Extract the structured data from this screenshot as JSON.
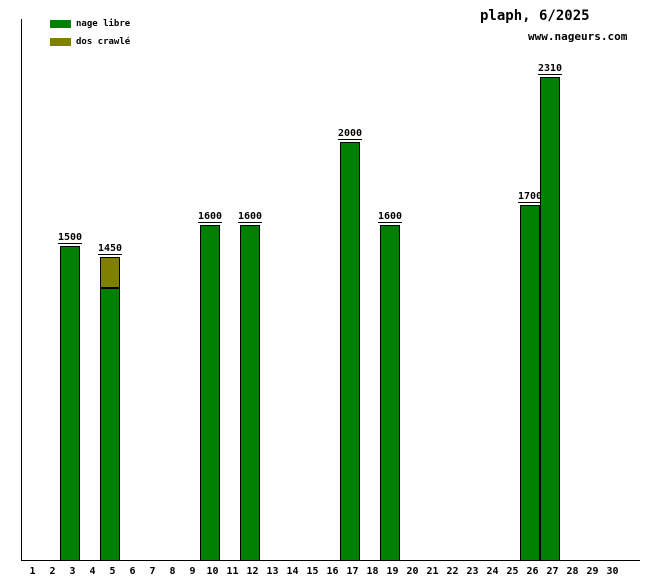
{
  "header": {
    "title": "plaph, 6/2025",
    "subtitle": "www.nageurs.com"
  },
  "legend": {
    "items": [
      {
        "name": "nage-libre",
        "label": "nage libre",
        "color": "#008000"
      },
      {
        "name": "dos-crawle",
        "label": "dos crawlé",
        "color": "#808000"
      }
    ]
  },
  "chart_data": {
    "type": "bar",
    "stacked": true,
    "title": "plaph, 6/2025",
    "subtitle": "www.nageurs.com",
    "unit": "m",
    "x_ticks": [
      "1",
      "2",
      "3",
      "4",
      "5",
      "6",
      "7",
      "8",
      "9",
      "10",
      "11",
      "12",
      "13",
      "14",
      "15",
      "16",
      "17",
      "18",
      "19",
      "20",
      "21",
      "22",
      "23",
      "24",
      "25",
      "26",
      "27",
      "28",
      "29",
      "30"
    ],
    "ylim": [
      0,
      2590
    ],
    "grid": false,
    "legend_position": "top-left",
    "series": [
      {
        "name": "nage libre",
        "color": "#008000"
      },
      {
        "name": "dos crawlé",
        "color": "#808000"
      }
    ],
    "bars": [
      {
        "day": 3,
        "total": 1500,
        "label": "1500",
        "segments": [
          {
            "series": "nage libre",
            "value": 1500
          }
        ]
      },
      {
        "day": 5,
        "total": 1450,
        "label": "1450",
        "segments": [
          {
            "series": "nage libre",
            "value": 1300
          },
          {
            "series": "dos crawlé",
            "value": 150
          }
        ]
      },
      {
        "day": 10,
        "total": 1600,
        "label": "1600",
        "segments": [
          {
            "series": "nage libre",
            "value": 1600
          }
        ]
      },
      {
        "day": 12,
        "total": 1600,
        "label": "1600",
        "segments": [
          {
            "series": "nage libre",
            "value": 1600
          }
        ]
      },
      {
        "day": 17,
        "total": 2000,
        "label": "2000",
        "segments": [
          {
            "series": "nage libre",
            "value": 2000
          }
        ]
      },
      {
        "day": 19,
        "total": 1600,
        "label": "1600",
        "segments": [
          {
            "series": "nage libre",
            "value": 1600
          }
        ]
      },
      {
        "day": 26,
        "total": 1700,
        "label": "1700",
        "segments": [
          {
            "series": "nage libre",
            "value": 1700
          }
        ]
      },
      {
        "day": 27,
        "total": 2310,
        "label": "2310",
        "segments": [
          {
            "series": "nage libre",
            "value": 2310
          }
        ]
      }
    ]
  }
}
